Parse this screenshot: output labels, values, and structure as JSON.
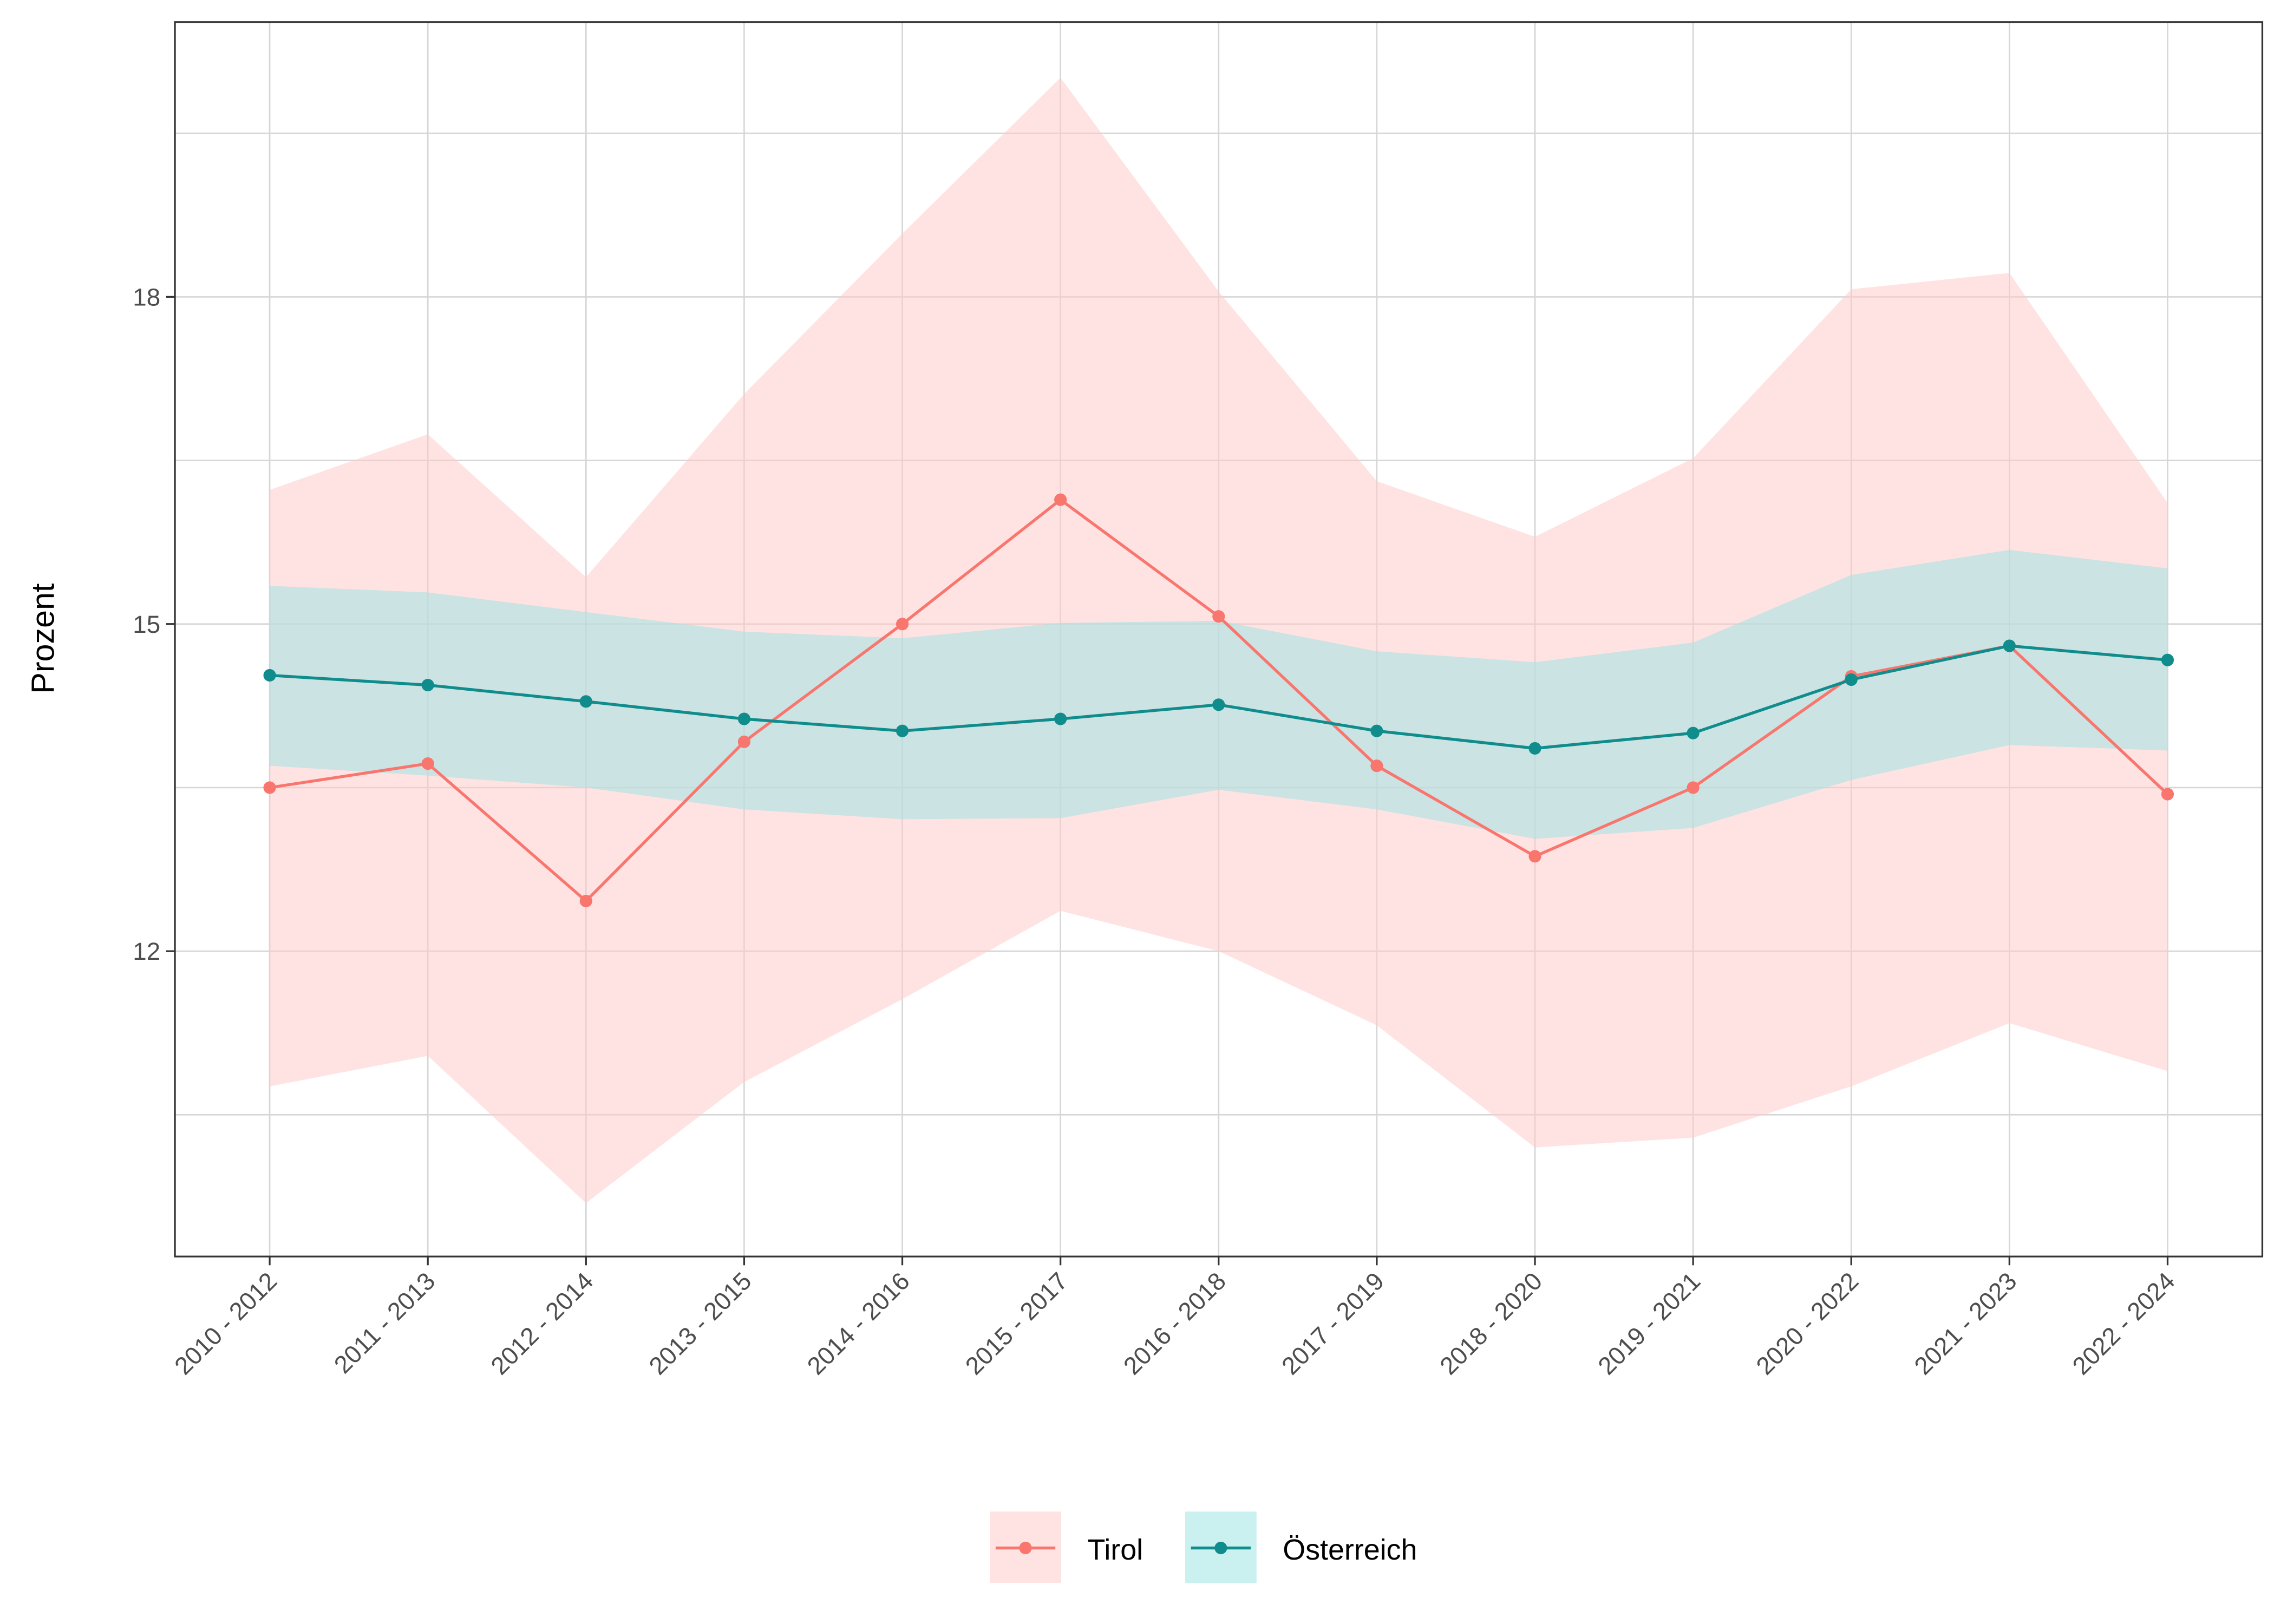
{
  "chart_data": {
    "type": "line",
    "title": "",
    "xlabel": "",
    "ylabel": "Prozent",
    "ylim": [
      9.2,
      20.52
    ],
    "yticks": [
      12,
      15,
      18
    ],
    "ytick_labels": [
      "12",
      "15",
      "18"
    ],
    "grid": true,
    "legend_position": "bottom",
    "categories": [
      "2010 - 2012",
      "2011 - 2013",
      "2012 - 2014",
      "2013 - 2015",
      "2014 - 2016",
      "2015 - 2017",
      "2016 - 2018",
      "2017 - 2019",
      "2018 - 2020",
      "2019 - 2021",
      "2020 - 2022",
      "2021 - 2023",
      "2022 - 2024"
    ],
    "series": [
      {
        "name": "Tirol",
        "color": "#F8766D",
        "band_color": "#FFCCCC",
        "values": [
          13.5,
          13.72,
          12.46,
          13.92,
          15.0,
          16.14,
          15.07,
          13.7,
          12.87,
          13.5,
          14.52,
          14.8,
          13.44
        ],
        "upper": [
          16.23,
          16.74,
          15.43,
          17.11,
          18.58,
          20.01,
          18.05,
          16.31,
          15.8,
          16.52,
          18.07,
          18.22,
          16.11
        ],
        "lower": [
          10.76,
          11.04,
          9.69,
          10.8,
          11.56,
          12.37,
          12.0,
          11.32,
          10.2,
          10.29,
          10.76,
          11.34,
          10.9
        ]
      },
      {
        "name": "Österreich",
        "color": "#108C8C",
        "band_color": "#A0E4E4",
        "values": [
          14.53,
          14.44,
          14.29,
          14.13,
          14.02,
          14.13,
          14.26,
          14.02,
          13.86,
          14.0,
          14.49,
          14.8,
          14.67
        ],
        "upper": [
          15.35,
          15.29,
          15.11,
          14.93,
          14.87,
          15.01,
          15.03,
          14.75,
          14.65,
          14.83,
          15.45,
          15.68,
          15.51
        ],
        "lower": [
          13.7,
          13.61,
          13.5,
          13.3,
          13.21,
          13.22,
          13.48,
          13.3,
          13.03,
          13.13,
          13.57,
          13.89,
          13.84
        ]
      }
    ]
  }
}
